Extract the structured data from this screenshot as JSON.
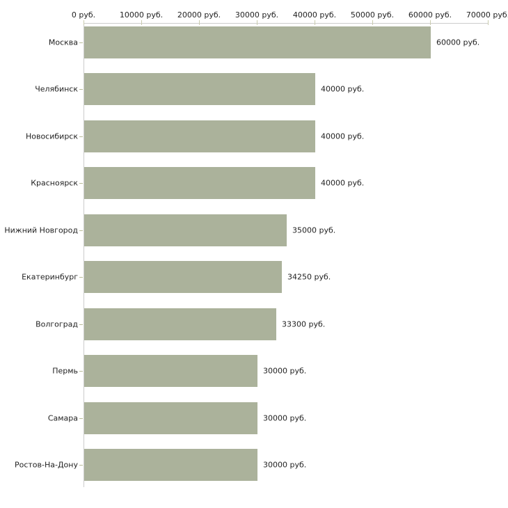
{
  "chart_data": {
    "type": "bar",
    "orientation": "horizontal",
    "title": "",
    "xlabel": "",
    "ylabel": "",
    "grid": false,
    "legend": null,
    "categories": [
      "Москва",
      "Челябинск",
      "Новосибирск",
      "Красноярск",
      "Нижний Новгород",
      "Екатеринбург",
      "Волгоград",
      "Пермь",
      "Самара",
      "Ростов-На-Дону"
    ],
    "values": [
      60000,
      40000,
      40000,
      40000,
      35000,
      34250,
      33300,
      30000,
      30000,
      30000
    ],
    "value_labels": [
      "60000 руб.",
      "40000 руб.",
      "40000 руб.",
      "40000 руб.",
      "35000 руб.",
      "34250 руб.",
      "33300 руб.",
      "30000 руб.",
      "30000 руб.",
      "30000 руб."
    ],
    "x_ticks": [
      0,
      10000,
      20000,
      30000,
      40000,
      50000,
      60000,
      70000
    ],
    "x_tick_labels": [
      "0 руб.",
      "10000 руб.",
      "20000 руб.",
      "30000 руб.",
      "40000 руб.",
      "50000 руб.",
      "60000 руб.",
      "70000 руб."
    ],
    "xlim": [
      0,
      70000
    ],
    "colors": {
      "bar": "#abb29b",
      "axis": "#cccccc",
      "axis_tick": "#c9cbae",
      "category_tick": "#b9bc99",
      "text": "#222222",
      "background": "#ffffff"
    }
  }
}
